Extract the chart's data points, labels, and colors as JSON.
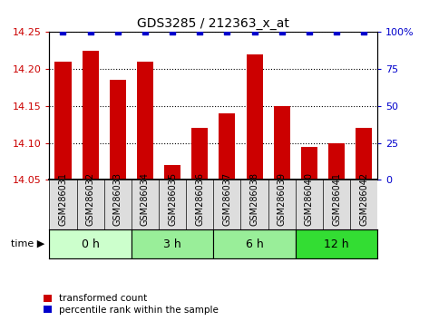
{
  "title": "GDS3285 / 212363_x_at",
  "samples": [
    "GSM286031",
    "GSM286032",
    "GSM286033",
    "GSM286034",
    "GSM286035",
    "GSM286036",
    "GSM286037",
    "GSM286038",
    "GSM286039",
    "GSM286040",
    "GSM286041",
    "GSM286042"
  ],
  "bar_values": [
    14.21,
    14.225,
    14.185,
    14.21,
    14.07,
    14.12,
    14.14,
    14.22,
    14.15,
    14.095,
    14.1,
    14.12
  ],
  "percentile_values": [
    100,
    100,
    100,
    100,
    100,
    100,
    100,
    100,
    100,
    100,
    100,
    100
  ],
  "bar_color": "#cc0000",
  "percentile_color": "#0000cc",
  "ylim_left": [
    14.05,
    14.25
  ],
  "ylim_right": [
    0,
    100
  ],
  "yticks_left": [
    14.05,
    14.1,
    14.15,
    14.2,
    14.25
  ],
  "yticks_right": [
    0,
    25,
    50,
    75,
    100
  ],
  "groups": [
    {
      "label": "0 h",
      "start": 0,
      "end": 3,
      "color": "#ccffcc"
    },
    {
      "label": "3 h",
      "start": 3,
      "end": 6,
      "color": "#99ee99"
    },
    {
      "label": "6 h",
      "start": 6,
      "end": 9,
      "color": "#99ee99"
    },
    {
      "label": "12 h",
      "start": 9,
      "end": 12,
      "color": "#33dd33"
    }
  ],
  "bar_width": 0.6,
  "xlab_bg": "#dddddd",
  "grid_color": "black",
  "legend_items": [
    {
      "label": "transformed count",
      "color": "#cc0000"
    },
    {
      "label": "percentile rank within the sample",
      "color": "#0000cc"
    }
  ]
}
